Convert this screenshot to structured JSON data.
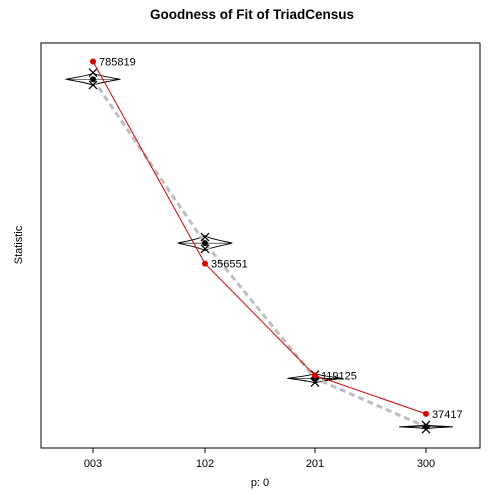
{
  "chart_data": {
    "type": "line",
    "title": "Goodness of Fit of TriadCensus",
    "xlabel": "p: 0",
    "ylabel": "Statistic",
    "categories": [
      "003",
      "102",
      "201",
      "300"
    ],
    "grid": false,
    "legend": "none",
    "observed": {
      "values": [
        785819,
        356551,
        119125,
        37417
      ],
      "labels": [
        "785819",
        "356551",
        "119125",
        "37417"
      ],
      "color": "#e00000"
    },
    "simulated_mean": {
      "values": [
        748000,
        400000,
        113000,
        10000
      ],
      "color": "#bebebe"
    },
    "simulated_quartiles": [
      [
        762000,
        736000
      ],
      [
        413000,
        388000
      ],
      [
        121000,
        104000
      ],
      [
        14000,
        5000
      ]
    ],
    "violins": [
      {
        "center": 748000,
        "half_height": 13000,
        "half_width_cat": 0.24
      },
      {
        "center": 400000,
        "half_height": 16000,
        "half_width_cat": 0.24
      },
      {
        "center": 113000,
        "half_height": 10000,
        "half_width_cat": 0.24
      },
      {
        "center": 10000,
        "half_height": 4000,
        "half_width_cat": 0.24
      }
    ],
    "ylim": [
      -35000,
      825000
    ]
  }
}
